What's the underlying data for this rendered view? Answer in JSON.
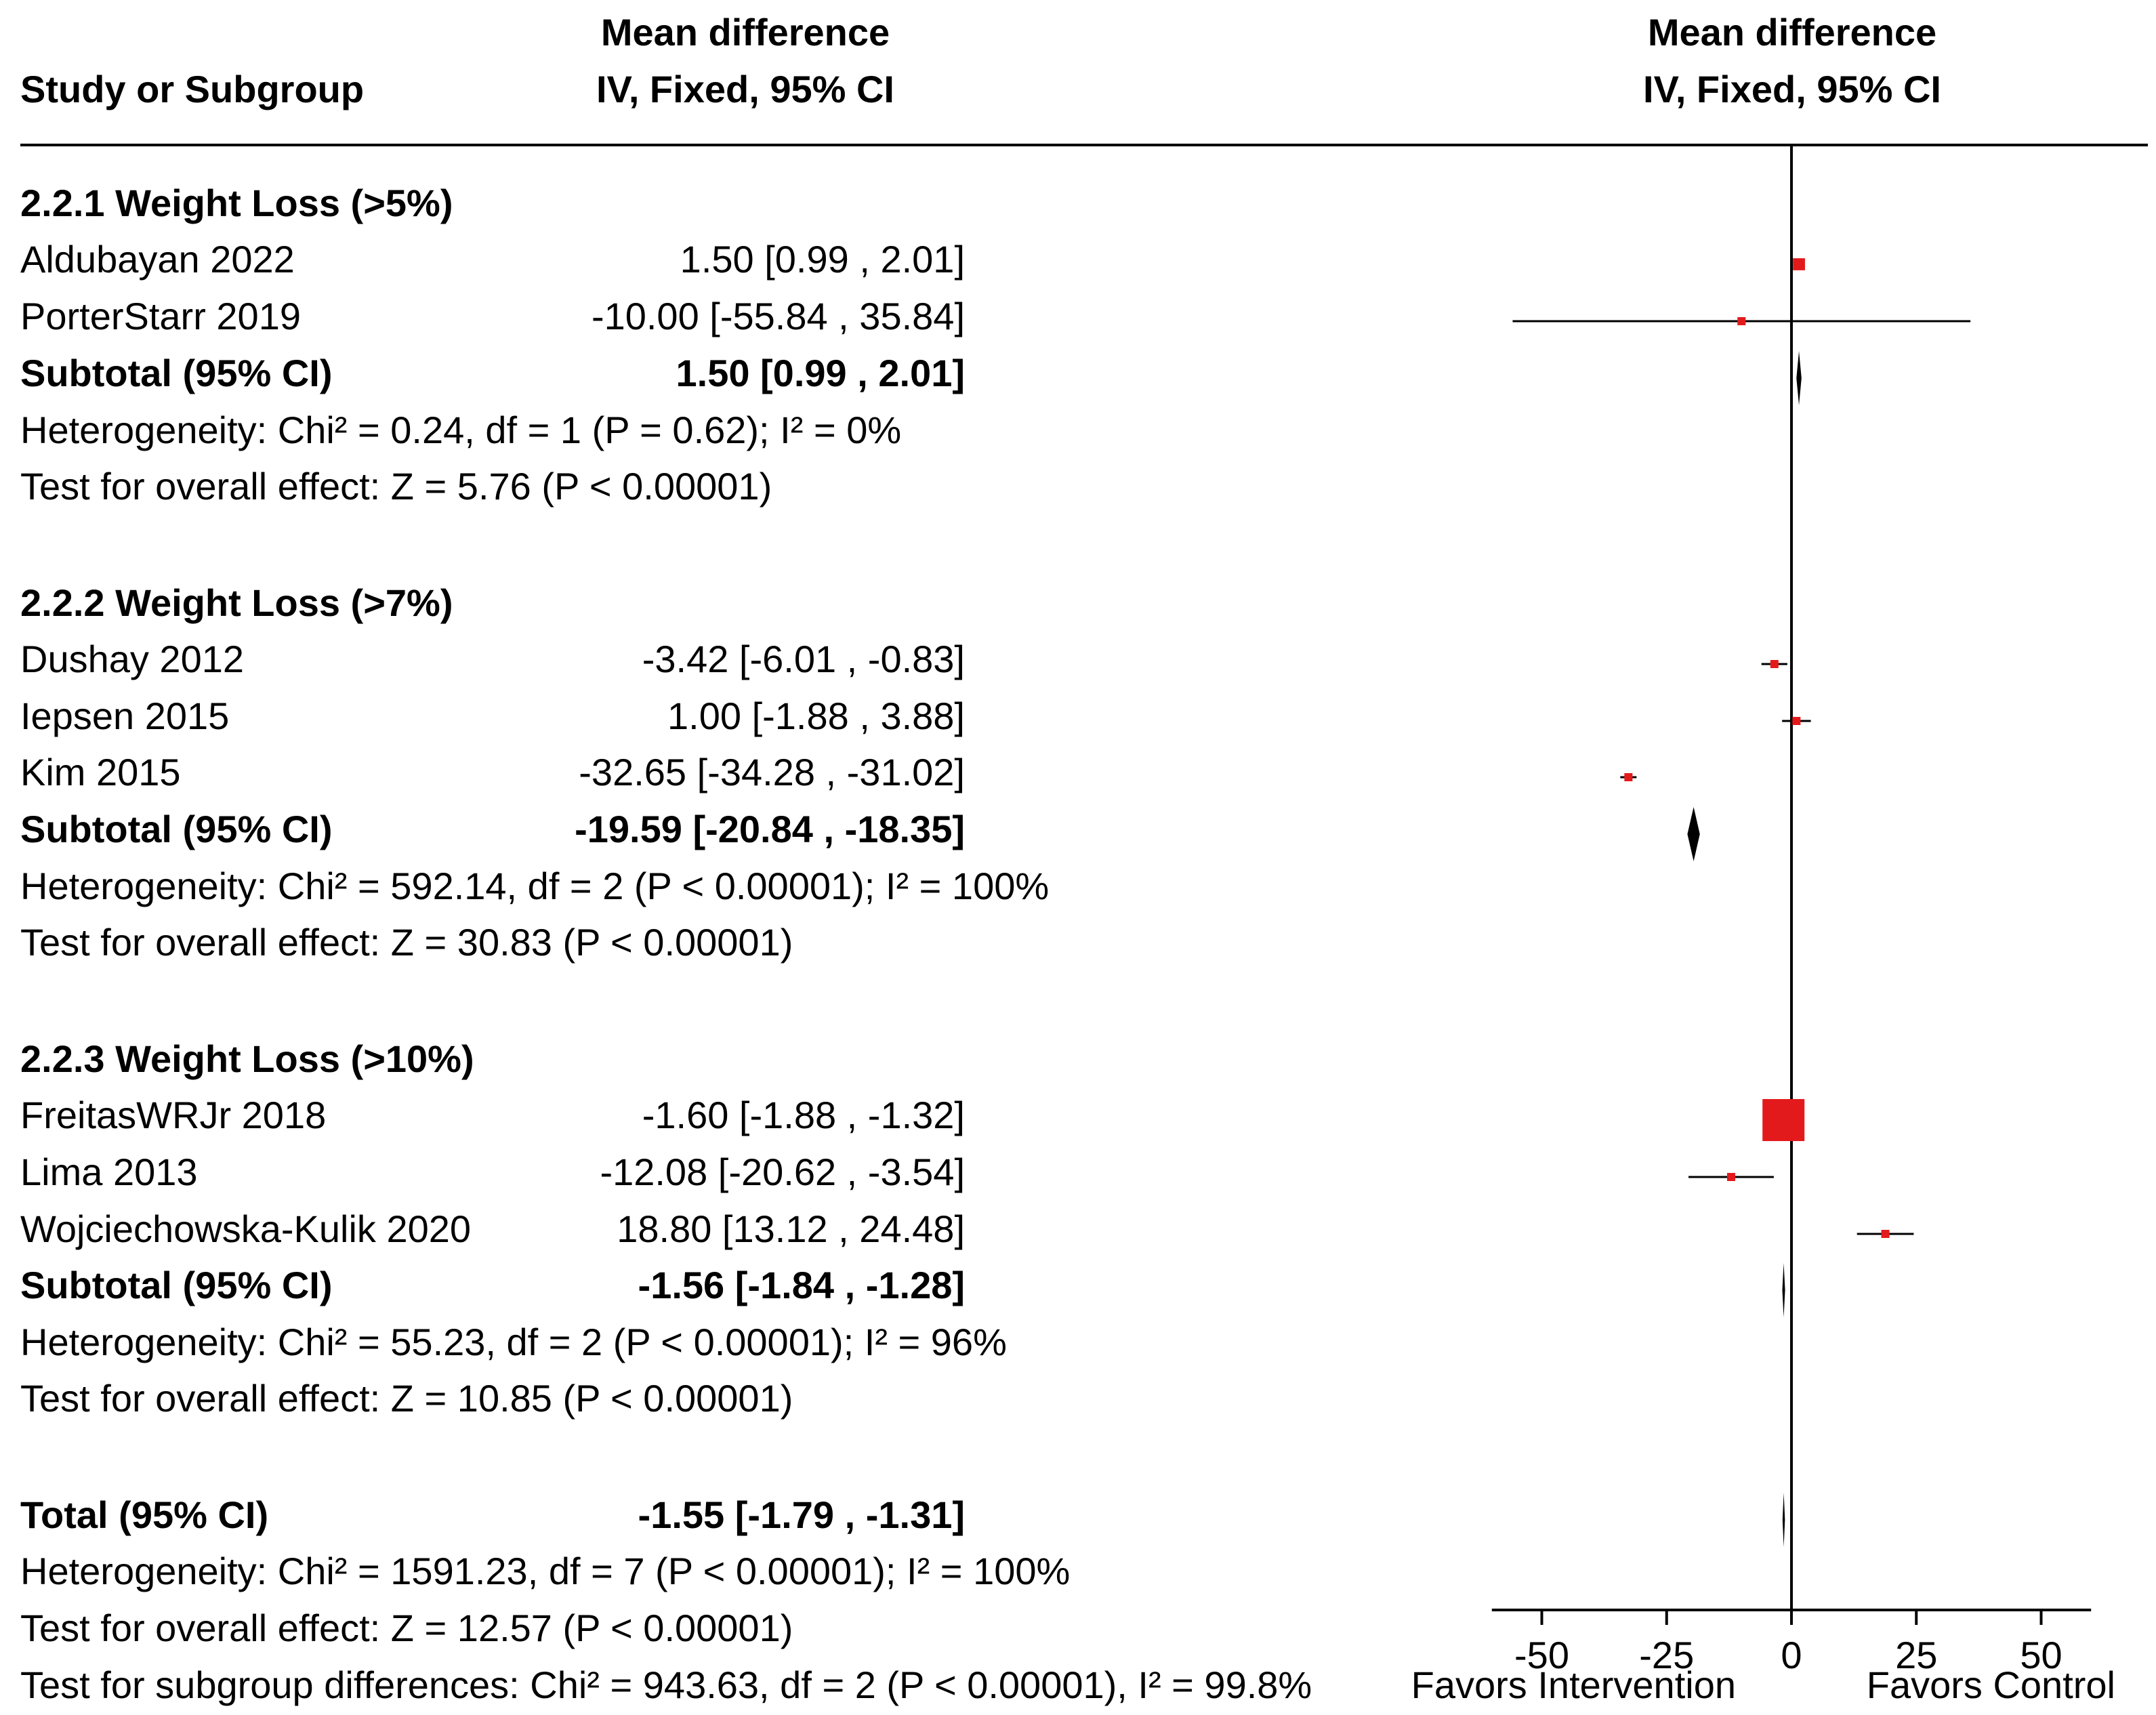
{
  "header": {
    "col1": "Study or Subgroup",
    "col2_line1": "Mean difference",
    "col2_line2": "IV, Fixed, 95% CI",
    "col3_line1": "Mean difference",
    "col3_line2": "IV, Fixed, 95% CI"
  },
  "subgroups": [
    {
      "title": "2.2.1 Weight Loss (>5%)",
      "studies": [
        {
          "name": "Aldubayan 2022",
          "ci": "1.50 [0.99 , 2.01]"
        },
        {
          "name": "PorterStarr 2019",
          "ci": "-10.00 [-55.84 , 35.84]"
        }
      ],
      "subtotal_label": "Subtotal (95% CI)",
      "subtotal_ci": "1.50 [0.99 , 2.01]",
      "heterogeneity": "Heterogeneity: Chi² = 0.24, df = 1 (P = 0.62); I² = 0%",
      "overall": "Test for overall effect: Z = 5.76 (P < 0.00001)"
    },
    {
      "title": "2.2.2 Weight Loss (>7%)",
      "studies": [
        {
          "name": "Dushay 2012",
          "ci": "-3.42 [-6.01 , -0.83]"
        },
        {
          "name": "Iepsen 2015",
          "ci": "1.00 [-1.88 , 3.88]"
        },
        {
          "name": "Kim 2015",
          "ci": "-32.65 [-34.28 , -31.02]"
        }
      ],
      "subtotal_label": "Subtotal (95% CI)",
      "subtotal_ci": "-19.59 [-20.84 , -18.35]",
      "heterogeneity": "Heterogeneity: Chi² = 592.14, df = 2 (P < 0.00001); I² = 100%",
      "overall": "Test for overall effect: Z = 30.83 (P < 0.00001)"
    },
    {
      "title": "2.2.3 Weight Loss (>10%)",
      "studies": [
        {
          "name": "FreitasWRJr 2018",
          "ci": "-1.60 [-1.88 , -1.32]"
        },
        {
          "name": "Lima 2013",
          "ci": "-12.08 [-20.62 , -3.54]"
        },
        {
          "name": "Wojciechowska-Kulik 2020",
          "ci": "18.80 [13.12 , 24.48]"
        }
      ],
      "subtotal_label": "Subtotal (95% CI)",
      "subtotal_ci": "-1.56 [-1.84 , -1.28]",
      "heterogeneity": "Heterogeneity: Chi² = 55.23, df = 2 (P < 0.00001); I² = 96%",
      "overall": "Test for overall effect: Z = 10.85 (P < 0.00001)"
    }
  ],
  "total": {
    "label": "Total (95% CI)",
    "ci": "-1.55 [-1.79 , -1.31]",
    "heterogeneity": "Heterogeneity: Chi² = 1591.23, df = 7 (P < 0.00001); I² = 100%",
    "overall": "Test for overall effect: Z = 12.57 (P < 0.00001)",
    "subgroup_diff": "Test for subgroup differences: Chi² = 943.63, df = 2 (P < 0.00001), I² = 99.8%"
  },
  "colors": {
    "square": "#e31a1c",
    "line": "#000000",
    "diamond": "#000000"
  },
  "chart_data": {
    "type": "forest",
    "title": "",
    "xlabel_left": "Favors Intervention",
    "xlabel_right": "Favors Control",
    "xlim": [
      -60,
      60
    ],
    "ticks": [
      -50,
      -25,
      0,
      25,
      50
    ],
    "tick_labels": [
      "-50",
      "-25",
      "0",
      "25",
      "50"
    ],
    "studies": [
      {
        "name": "Aldubayan 2022",
        "subgroup": "2.2.1",
        "md": 1.5,
        "lo": 0.99,
        "hi": 2.01,
        "weight": 0.06
      },
      {
        "name": "PorterStarr 2019",
        "subgroup": "2.2.1",
        "md": -10.0,
        "lo": -55.84,
        "hi": 35.84,
        "weight": 0.001
      },
      {
        "name": "Dushay 2012",
        "subgroup": "2.2.2",
        "md": -3.42,
        "lo": -6.01,
        "hi": -0.83,
        "weight": 0.002
      },
      {
        "name": "Iepsen 2015",
        "subgroup": "2.2.2",
        "md": 1.0,
        "lo": -1.88,
        "hi": 3.88,
        "weight": 0.002
      },
      {
        "name": "Kim 2015",
        "subgroup": "2.2.2",
        "md": -32.65,
        "lo": -34.28,
        "hi": -31.02,
        "weight": 0.006
      },
      {
        "name": "FreitasWRJr 2018",
        "subgroup": "2.2.3",
        "md": -1.6,
        "lo": -1.88,
        "hi": -1.32,
        "weight": 0.73
      },
      {
        "name": "Lima 2013",
        "subgroup": "2.2.3",
        "md": -12.08,
        "lo": -20.62,
        "hi": -3.54,
        "weight": 0.001
      },
      {
        "name": "Wojciechowska-Kulik 2020",
        "subgroup": "2.2.3",
        "md": 18.8,
        "lo": 13.12,
        "hi": 24.48,
        "weight": 0.002
      }
    ],
    "subtotals": [
      {
        "subgroup": "2.2.1",
        "md": 1.5,
        "lo": 0.99,
        "hi": 2.01
      },
      {
        "subgroup": "2.2.2",
        "md": -19.59,
        "lo": -20.84,
        "hi": -18.35
      },
      {
        "subgroup": "2.2.3",
        "md": -1.56,
        "lo": -1.84,
        "hi": -1.28
      }
    ],
    "overall": {
      "md": -1.55,
      "lo": -1.79,
      "hi": -1.31
    }
  }
}
